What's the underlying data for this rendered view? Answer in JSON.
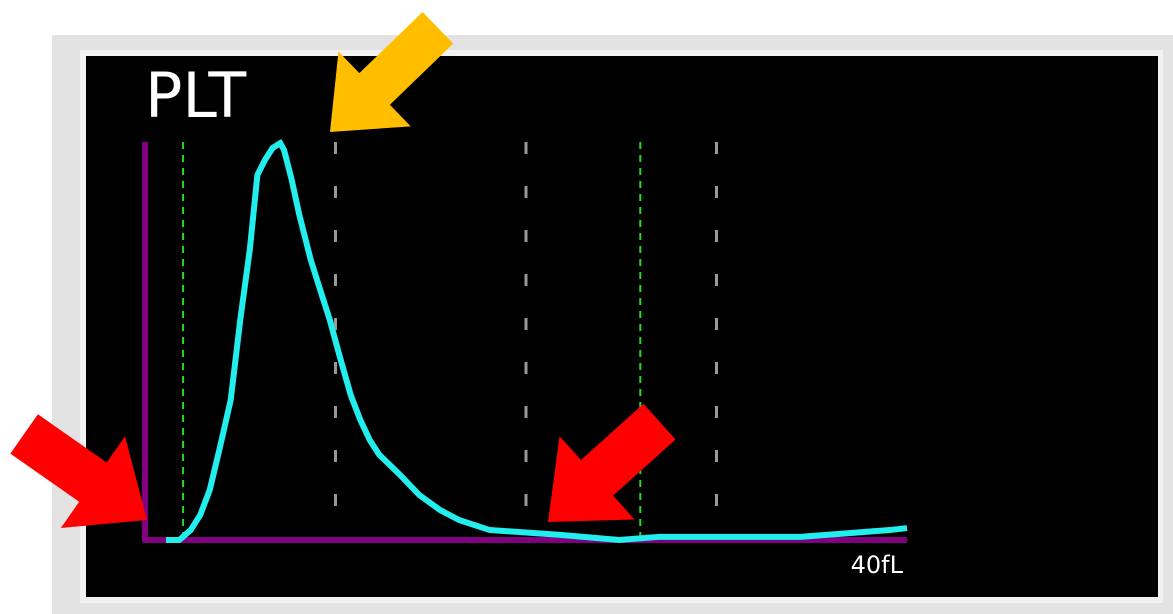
{
  "chart_data": {
    "type": "line",
    "title": "PLT",
    "x": [
      1.1,
      1.8,
      2.4,
      2.9,
      3.4,
      3.9,
      4.5,
      5.0,
      5.5,
      5.9,
      6.3,
      6.7,
      7.1,
      7.3,
      7.7,
      8.1,
      8.7,
      9.2,
      9.7,
      10.2,
      10.8,
      11.3,
      11.8,
      12.3,
      13.4,
      14.4,
      15.5,
      16.5,
      18.1,
      21.8,
      24.9,
      27.0,
      34.4,
      39.1,
      40.0
    ],
    "series": [
      {
        "color": "#22eeee",
        "values": [
          0,
          0,
          2.5,
          6.3,
          12.6,
          22.6,
          35.2,
          55.3,
          72.9,
          91.7,
          95.5,
          98.5,
          99.7,
          98.0,
          90.5,
          81.7,
          70.4,
          62.8,
          55.3,
          46.5,
          36.4,
          30.2,
          25.1,
          21.4,
          16.3,
          11.3,
          7.5,
          5.0,
          2.5,
          1.3,
          0,
          0.8,
          0.8,
          2.5,
          3.0
        ]
      }
    ],
    "xlim": [
      0,
      40
    ],
    "ylim": [
      0,
      100
    ],
    "xticks": [
      {
        "value": 40,
        "label": "40fL"
      }
    ],
    "axis_color": "#800080",
    "discriminators": {
      "values": [
        2,
        26
      ],
      "color": "#22dd22"
    },
    "reference_lines": {
      "values": [
        10,
        20,
        30
      ],
      "color": "#999999"
    }
  }
}
